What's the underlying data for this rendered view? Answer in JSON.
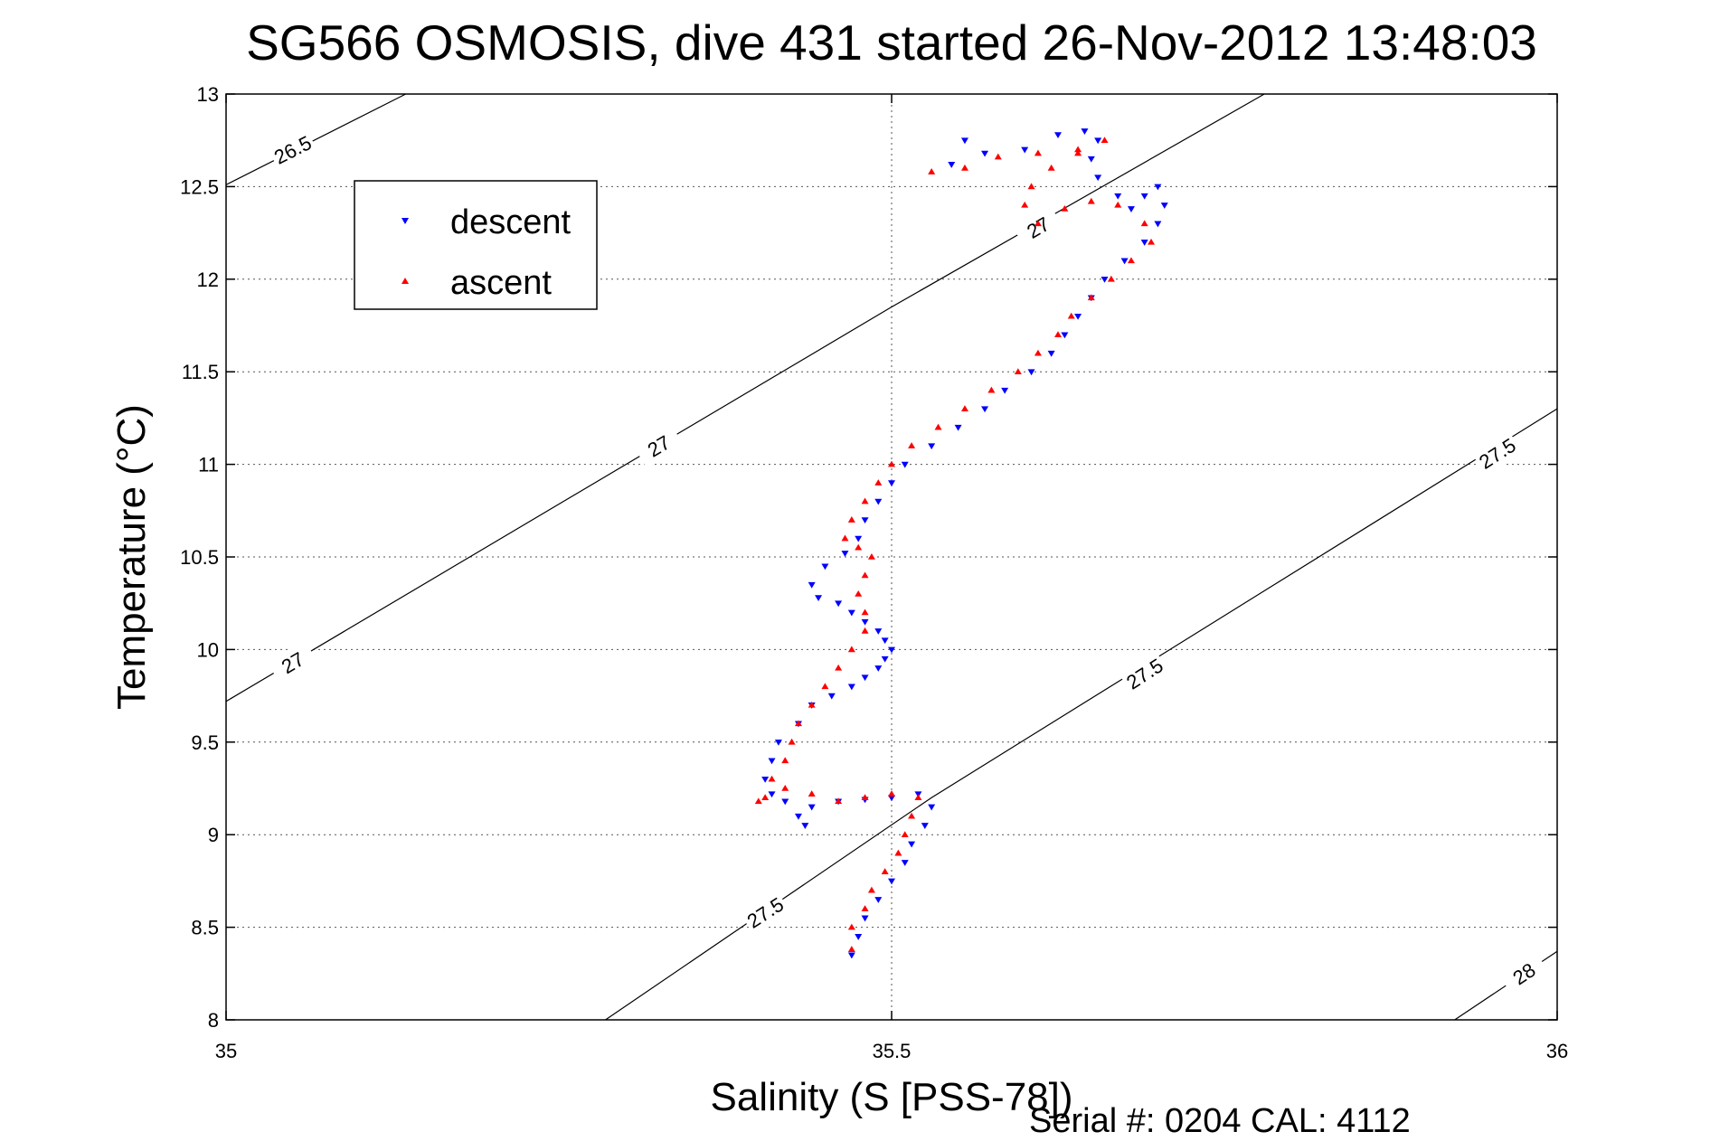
{
  "chart_data": {
    "type": "scatter",
    "title": "SG566 OSMOSIS, dive 431 started 26-Nov-2012 13:48:03",
    "xlabel": "Salinity (S [PSS-78])",
    "ylabel": "Temperature (°C)",
    "footer": "Serial #: 0204  CAL: 4112",
    "xlim": [
      35,
      36
    ],
    "ylim": [
      8,
      13
    ],
    "xticks": [
      {
        "value": 35,
        "label": "35"
      },
      {
        "value": 35.5,
        "label": "35.5"
      },
      {
        "value": 36,
        "label": "36"
      }
    ],
    "yticks": [
      {
        "value": 8,
        "label": "8"
      },
      {
        "value": 8.5,
        "label": "8.5"
      },
      {
        "value": 9,
        "label": "9"
      },
      {
        "value": 9.5,
        "label": "9.5"
      },
      {
        "value": 10,
        "label": "10"
      },
      {
        "value": 10.5,
        "label": "10.5"
      },
      {
        "value": 11,
        "label": "11"
      },
      {
        "value": 11.5,
        "label": "11.5"
      },
      {
        "value": 12,
        "label": "12"
      },
      {
        "value": 12.5,
        "label": "12.5"
      },
      {
        "value": 13,
        "label": "13"
      }
    ],
    "grid": true,
    "legend": {
      "position": "top-left",
      "entries": [
        {
          "name": "descent",
          "color": "#0000ff",
          "marker": "down-triangle"
        },
        {
          "name": "ascent",
          "color": "#ff0000",
          "marker": "up-triangle"
        }
      ]
    },
    "contours": [
      {
        "level": "26.5",
        "points": [
          [
            35.0,
            12.51
          ],
          [
            35.135,
            13.0
          ]
        ],
        "labels": [
          {
            "x": 35.05,
            "y": 12.7,
            "text": "26.5"
          }
        ]
      },
      {
        "level": "27",
        "points": [
          [
            35.0,
            9.72
          ],
          [
            35.5,
            11.85
          ],
          [
            35.78,
            13.0
          ]
        ],
        "labels": [
          {
            "x": 35.05,
            "y": 9.93,
            "text": "27"
          },
          {
            "x": 35.325,
            "y": 11.1,
            "text": "27"
          },
          {
            "x": 35.61,
            "y": 12.28,
            "text": "27"
          }
        ]
      },
      {
        "level": "27.5",
        "points": [
          [
            35.285,
            8.0
          ],
          [
            35.53,
            9.2
          ],
          [
            36.0,
            11.3
          ]
        ],
        "labels": [
          {
            "x": 35.405,
            "y": 8.58,
            "text": "27.5"
          },
          {
            "x": 35.69,
            "y": 9.87,
            "text": "27.5"
          },
          {
            "x": 35.955,
            "y": 11.06,
            "text": "27.5"
          }
        ]
      },
      {
        "level": "28",
        "points": [
          [
            35.923,
            8.0
          ],
          [
            36.0,
            8.37
          ]
        ],
        "labels": [
          {
            "x": 35.975,
            "y": 8.25,
            "text": "28"
          }
        ]
      }
    ],
    "series": [
      {
        "name": "descent",
        "color": "#0000ff",
        "marker": "down-triangle",
        "points": [
          [
            35.47,
            8.35
          ],
          [
            35.475,
            8.45
          ],
          [
            35.48,
            8.55
          ],
          [
            35.49,
            8.65
          ],
          [
            35.5,
            8.75
          ],
          [
            35.51,
            8.85
          ],
          [
            35.515,
            8.95
          ],
          [
            35.525,
            9.05
          ],
          [
            35.53,
            9.15
          ],
          [
            35.52,
            9.22
          ],
          [
            35.5,
            9.2
          ],
          [
            35.48,
            9.19
          ],
          [
            35.46,
            9.18
          ],
          [
            35.44,
            9.15
          ],
          [
            35.435,
            9.05
          ],
          [
            35.43,
            9.1
          ],
          [
            35.42,
            9.18
          ],
          [
            35.41,
            9.22
          ],
          [
            35.405,
            9.3
          ],
          [
            35.41,
            9.4
          ],
          [
            35.415,
            9.5
          ],
          [
            35.43,
            9.6
          ],
          [
            35.44,
            9.7
          ],
          [
            35.455,
            9.75
          ],
          [
            35.47,
            9.8
          ],
          [
            35.48,
            9.85
          ],
          [
            35.49,
            9.9
          ],
          [
            35.495,
            9.95
          ],
          [
            35.5,
            10.0
          ],
          [
            35.495,
            10.05
          ],
          [
            35.49,
            10.1
          ],
          [
            35.48,
            10.15
          ],
          [
            35.47,
            10.2
          ],
          [
            35.46,
            10.25
          ],
          [
            35.445,
            10.28
          ],
          [
            35.44,
            10.35
          ],
          [
            35.45,
            10.45
          ],
          [
            35.465,
            10.52
          ],
          [
            35.475,
            10.6
          ],
          [
            35.48,
            10.7
          ],
          [
            35.49,
            10.8
          ],
          [
            35.5,
            10.9
          ],
          [
            35.51,
            11.0
          ],
          [
            35.53,
            11.1
          ],
          [
            35.55,
            11.2
          ],
          [
            35.57,
            11.3
          ],
          [
            35.585,
            11.4
          ],
          [
            35.605,
            11.5
          ],
          [
            35.62,
            11.6
          ],
          [
            35.63,
            11.7
          ],
          [
            35.64,
            11.8
          ],
          [
            35.65,
            11.9
          ],
          [
            35.66,
            12.0
          ],
          [
            35.675,
            12.1
          ],
          [
            35.69,
            12.2
          ],
          [
            35.7,
            12.3
          ],
          [
            35.705,
            12.4
          ],
          [
            35.7,
            12.5
          ],
          [
            35.69,
            12.45
          ],
          [
            35.68,
            12.38
          ],
          [
            35.67,
            12.45
          ],
          [
            35.655,
            12.55
          ],
          [
            35.65,
            12.65
          ],
          [
            35.655,
            12.75
          ],
          [
            35.645,
            12.8
          ],
          [
            35.625,
            12.78
          ],
          [
            35.6,
            12.7
          ],
          [
            35.57,
            12.68
          ],
          [
            35.555,
            12.75
          ],
          [
            35.545,
            12.62
          ]
        ]
      },
      {
        "name": "ascent",
        "color": "#ff0000",
        "marker": "up-triangle",
        "points": [
          [
            35.47,
            8.38
          ],
          [
            35.47,
            8.5
          ],
          [
            35.48,
            8.6
          ],
          [
            35.485,
            8.7
          ],
          [
            35.495,
            8.8
          ],
          [
            35.505,
            8.9
          ],
          [
            35.51,
            9.0
          ],
          [
            35.515,
            9.1
          ],
          [
            35.52,
            9.2
          ],
          [
            35.5,
            9.22
          ],
          [
            35.48,
            9.2
          ],
          [
            35.46,
            9.18
          ],
          [
            35.44,
            9.22
          ],
          [
            35.42,
            9.25
          ],
          [
            35.405,
            9.2
          ],
          [
            35.4,
            9.18
          ],
          [
            35.41,
            9.3
          ],
          [
            35.42,
            9.4
          ],
          [
            35.425,
            9.5
          ],
          [
            35.43,
            9.6
          ],
          [
            35.44,
            9.7
          ],
          [
            35.45,
            9.8
          ],
          [
            35.46,
            9.9
          ],
          [
            35.47,
            10.0
          ],
          [
            35.48,
            10.1
          ],
          [
            35.48,
            10.2
          ],
          [
            35.475,
            10.3
          ],
          [
            35.48,
            10.4
          ],
          [
            35.485,
            10.5
          ],
          [
            35.475,
            10.55
          ],
          [
            35.465,
            10.6
          ],
          [
            35.47,
            10.7
          ],
          [
            35.48,
            10.8
          ],
          [
            35.49,
            10.9
          ],
          [
            35.5,
            11.0
          ],
          [
            35.515,
            11.1
          ],
          [
            35.535,
            11.2
          ],
          [
            35.555,
            11.3
          ],
          [
            35.575,
            11.4
          ],
          [
            35.595,
            11.5
          ],
          [
            35.61,
            11.6
          ],
          [
            35.625,
            11.7
          ],
          [
            35.635,
            11.8
          ],
          [
            35.65,
            11.9
          ],
          [
            35.665,
            12.0
          ],
          [
            35.68,
            12.1
          ],
          [
            35.695,
            12.2
          ],
          [
            35.69,
            12.3
          ],
          [
            35.67,
            12.4
          ],
          [
            35.65,
            12.42
          ],
          [
            35.63,
            12.38
          ],
          [
            35.61,
            12.3
          ],
          [
            35.6,
            12.4
          ],
          [
            35.605,
            12.5
          ],
          [
            35.62,
            12.6
          ],
          [
            35.64,
            12.68
          ],
          [
            35.66,
            12.75
          ],
          [
            35.64,
            12.7
          ],
          [
            35.61,
            12.68
          ],
          [
            35.58,
            12.66
          ],
          [
            35.555,
            12.6
          ],
          [
            35.53,
            12.58
          ]
        ]
      }
    ]
  }
}
